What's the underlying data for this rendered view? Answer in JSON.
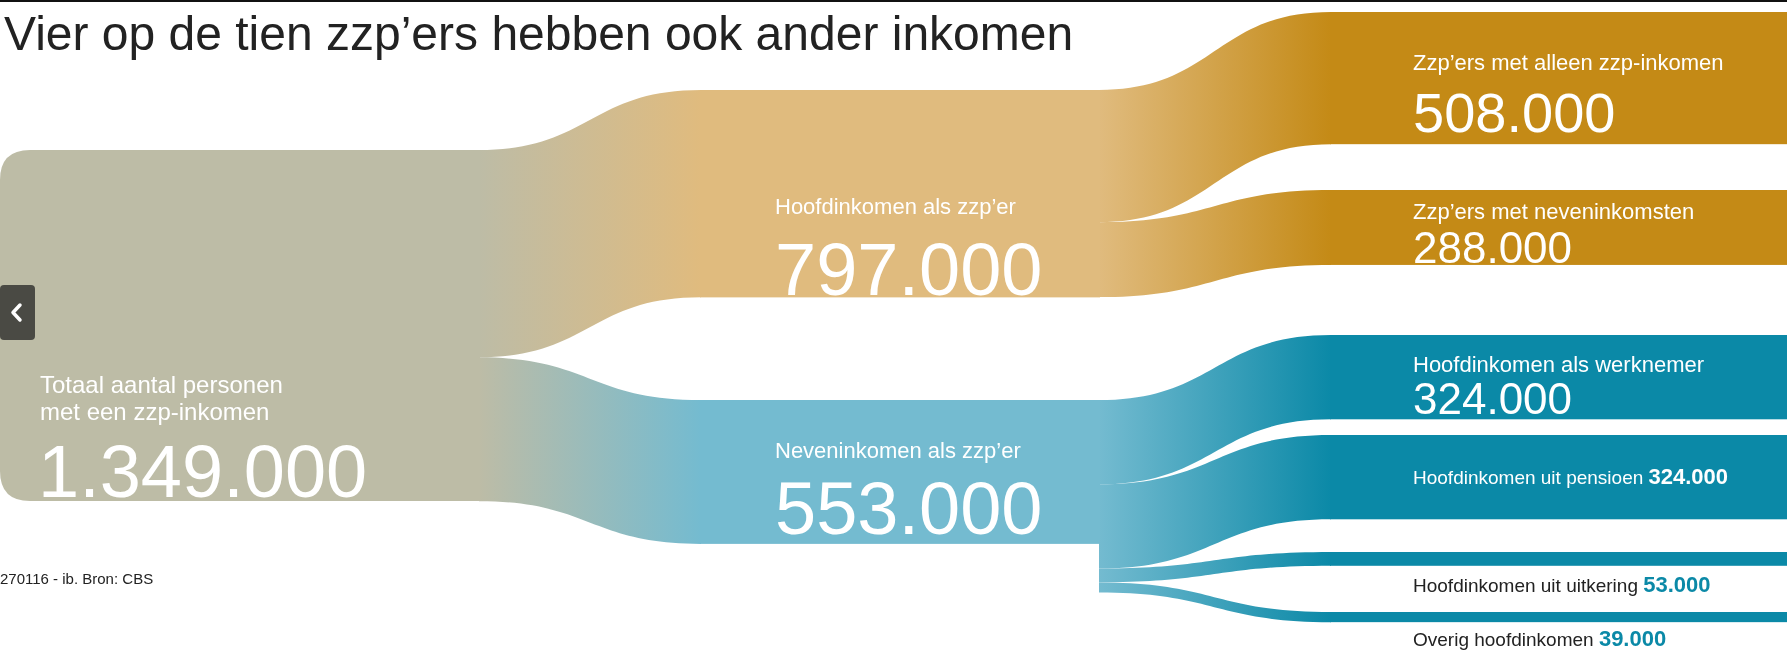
{
  "chart_data": {
    "type": "other",
    "title": "Vier op de tien zzp’ers hebben ook ander inkomen",
    "categories": [
      "Totaal aantal personen met een zzp-inkomen",
      "Hoofdinkomen als zzp’er",
      "Neveninkomen als zzp’er",
      "Zzp’ers met alleen zzp-inkomen",
      "Zzp’ers met neveninkomsten",
      "Hoofdinkomen als werknemer",
      "Hoofdinkomen uit pensioen",
      "Hoofdinkomen uit uitkering",
      "Overig hoofdinkomen"
    ],
    "values": [
      1349000,
      797000,
      553000,
      508000,
      288000,
      324000,
      324000,
      53000,
      39000
    ],
    "value_labels": [
      "1.349.000",
      "797.000",
      "553.000",
      "508.000",
      "288.000",
      "324.000",
      "324.000",
      "53.000",
      "39.000"
    ],
    "colors": [
      "#bdbca6",
      "#e0bb7e",
      "#74bbd0",
      "#c48a16",
      "#c48a16",
      "#0b89a7",
      "#0b89a7",
      "#0b89a7",
      "#0b89a7"
    ],
    "annotations": [
      "270116 - ib. Bron: CBS"
    ]
  }
}
